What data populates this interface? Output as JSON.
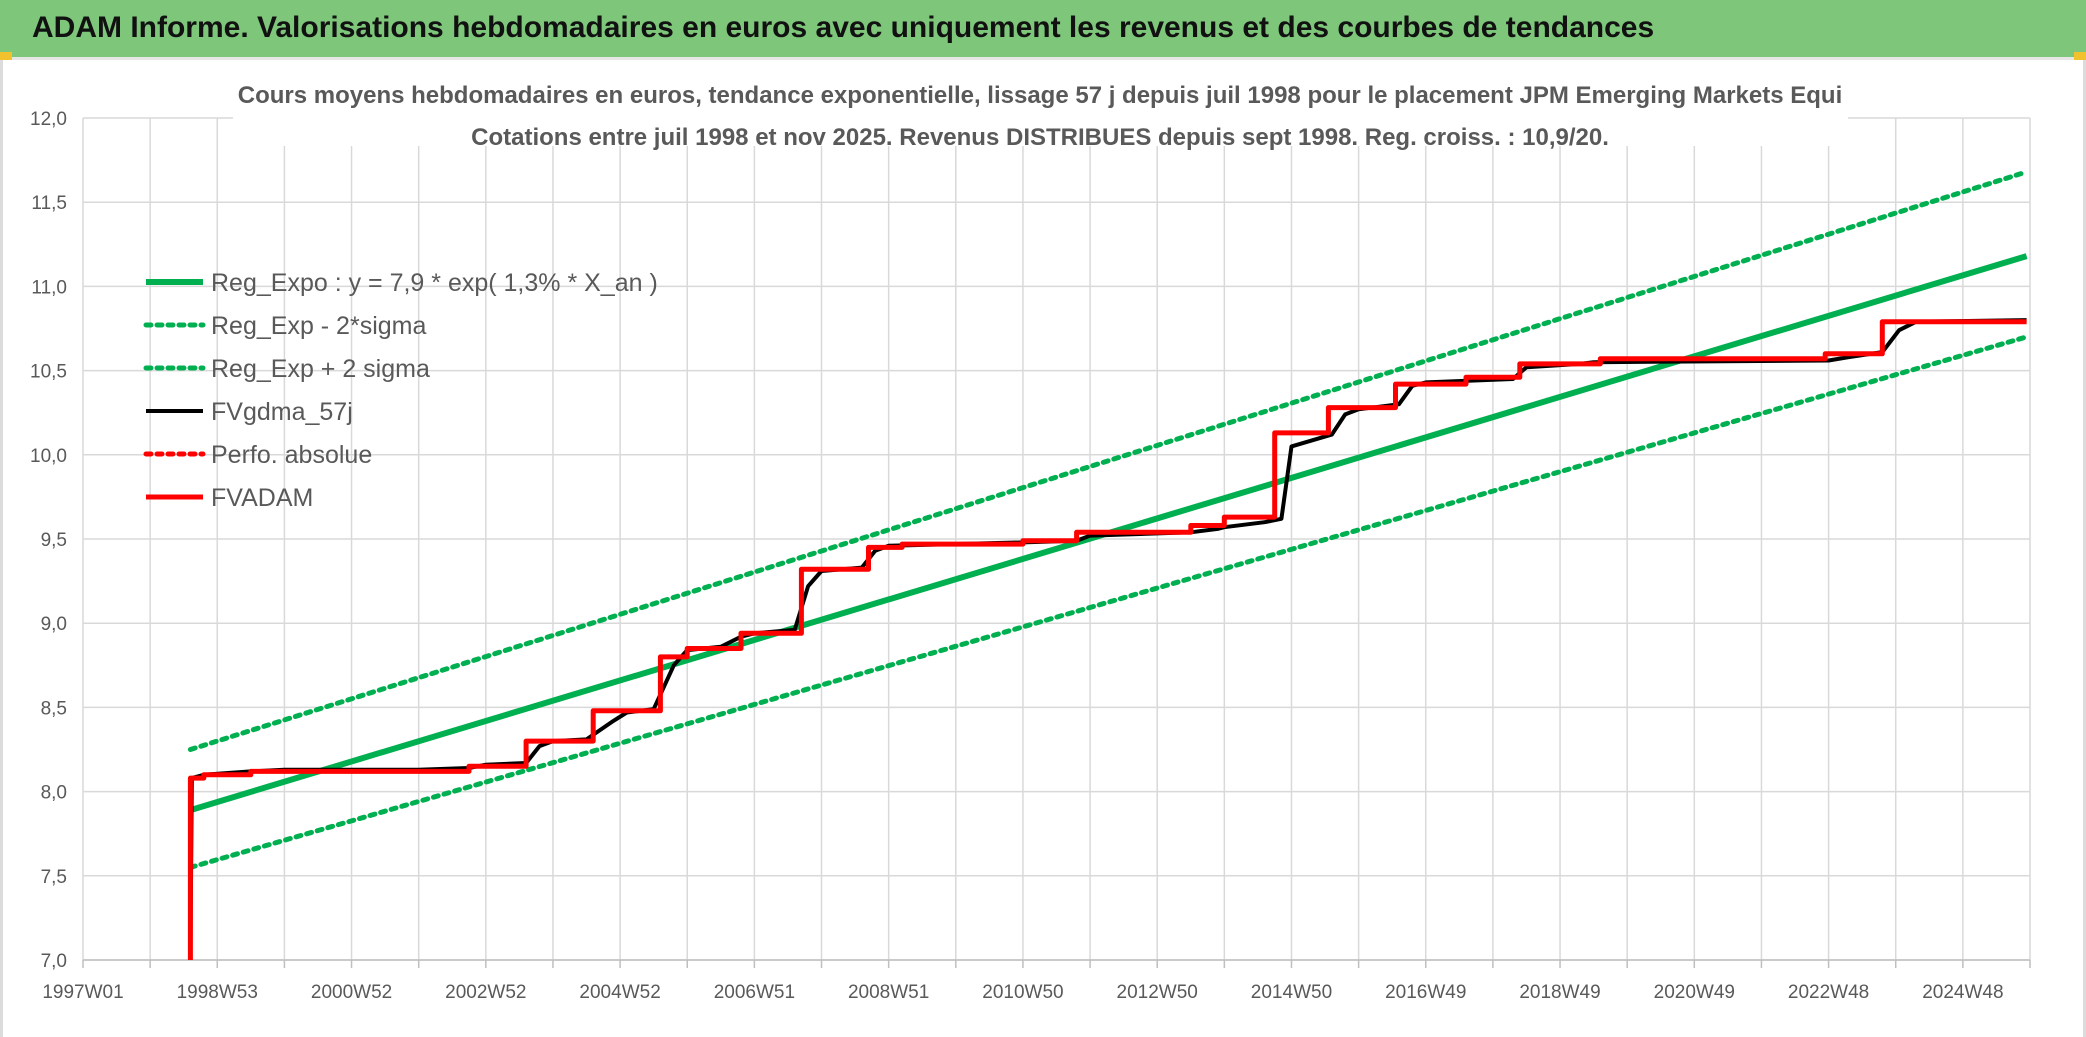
{
  "header": {
    "title": "ADAM Informe. Valorisations hebdomadaires en euros avec uniquement les revenus et des courbes de tendances"
  },
  "colors": {
    "banner": "#7dc67a",
    "reg_green": "#00b050",
    "fv_black": "#000000",
    "adam_red": "#ff0000",
    "grid": "#d9d9d9",
    "accent_corner": "#f2c12e"
  },
  "chart_data": {
    "type": "line",
    "title": "Cours moyens hebdomadaires en euros, tendance exponentielle, lissage 57 j depuis juil 1998 pour le placement JPM Emerging Markets Equi",
    "subtitle": "Cotations entre juil 1998 et nov 2025. Revenus DISTRIBUES depuis sept 1998. Reg. croiss. : 10,9/20.",
    "xlabel": "",
    "ylabel": "",
    "x_tick_labels": [
      "1997W01",
      "1998W53",
      "2000W52",
      "2002W52",
      "2004W52",
      "2006W51",
      "2008W51",
      "2010W50",
      "2012W50",
      "2014W50",
      "2016W49",
      "2018W49",
      "2020W49",
      "2022W48",
      "2024W48"
    ],
    "xlim": [
      1997.0,
      2026.0
    ],
    "ylim": [
      7.0,
      12.0
    ],
    "y_ticks": [
      7.0,
      7.5,
      8.0,
      8.5,
      9.0,
      9.5,
      10.0,
      10.5,
      11.0,
      11.5,
      12.0
    ],
    "y_tick_labels": [
      "7,0",
      "7,5",
      "8,0",
      "8,5",
      "9,0",
      "9,5",
      "10,0",
      "10,5",
      "11,0",
      "11,5",
      "12,0"
    ],
    "grid": true,
    "legend_position": "top-left",
    "series": [
      {
        "name": "Reg_Expo : y = 7,9 * exp( 1,3% *  X_an )",
        "style": "solid-thick",
        "color": "#00b050",
        "x": [
          1998.6,
          2025.95
        ],
        "y": [
          7.89,
          11.18
        ]
      },
      {
        "name": "Reg_Exp - 2*sigma",
        "style": "dotted",
        "color": "#00b050",
        "x": [
          1998.6,
          2025.95
        ],
        "y": [
          7.55,
          10.7
        ]
      },
      {
        "name": "Reg_Exp + 2 sigma",
        "style": "dotted",
        "color": "#00b050",
        "x": [
          1998.6,
          2025.95
        ],
        "y": [
          8.25,
          11.68
        ]
      },
      {
        "name": "FVgdma_57j",
        "style": "solid",
        "color": "#000000",
        "x": [
          1998.6,
          1998.62,
          1998.8,
          1999.5,
          2000.0,
          2002.0,
          2002.75,
          2003.0,
          2003.6,
          2003.8,
          2004.0,
          2004.5,
          2004.9,
          2005.1,
          2005.5,
          2005.8,
          2006.0,
          2006.5,
          2006.8,
          2007.0,
          2007.6,
          2007.8,
          2008.0,
          2008.6,
          2008.8,
          2009.0,
          2011.0,
          2011.8,
          2012.0,
          2013.5,
          2013.9,
          2014.0,
          2014.6,
          2014.85,
          2015.0,
          2015.6,
          2015.8,
          2016.0,
          2016.6,
          2016.8,
          2017.0,
          2018.3,
          2018.5,
          2019.3,
          2019.5,
          2023.0,
          2023.3,
          2023.8,
          2024.05,
          2024.3,
          2025.95
        ],
        "y": [
          7.0,
          8.08,
          8.1,
          8.12,
          8.13,
          8.13,
          8.14,
          8.16,
          8.17,
          8.27,
          8.3,
          8.31,
          8.42,
          8.47,
          8.49,
          8.75,
          8.84,
          8.86,
          8.92,
          8.94,
          8.96,
          9.22,
          9.31,
          9.33,
          9.43,
          9.46,
          9.48,
          9.49,
          9.52,
          9.54,
          9.56,
          9.57,
          9.6,
          9.62,
          10.05,
          10.12,
          10.24,
          10.27,
          10.3,
          10.41,
          10.43,
          10.45,
          10.52,
          10.54,
          10.55,
          10.56,
          10.58,
          10.61,
          10.74,
          10.79,
          10.8
        ]
      },
      {
        "name": "Perfo. absolue",
        "style": "dotted",
        "color": "#ff0000",
        "x": [],
        "y": []
      },
      {
        "name": "FVADAM",
        "style": "solid-thick",
        "color": "#ff0000",
        "x": [
          1998.6,
          1998.6,
          1998.8,
          1998.8,
          1999.5,
          1999.5,
          2002.75,
          2002.75,
          2003.6,
          2003.6,
          2004.6,
          2004.6,
          2005.6,
          2005.6,
          2006.0,
          2006.0,
          2006.8,
          2006.8,
          2007.7,
          2007.7,
          2008.7,
          2008.7,
          2009.2,
          2009.2,
          2011.0,
          2011.0,
          2011.8,
          2011.8,
          2013.5,
          2013.5,
          2014.0,
          2014.0,
          2014.75,
          2014.75,
          2015.55,
          2015.55,
          2016.55,
          2016.55,
          2017.6,
          2017.6,
          2018.4,
          2018.4,
          2019.6,
          2019.6,
          2022.95,
          2022.95,
          2023.8,
          2023.8,
          2025.95
        ],
        "y": [
          7.0,
          8.08,
          8.08,
          8.1,
          8.1,
          8.12,
          8.12,
          8.15,
          8.15,
          8.3,
          8.3,
          8.48,
          8.48,
          8.8,
          8.8,
          8.85,
          8.85,
          8.94,
          8.94,
          9.32,
          9.32,
          9.45,
          9.45,
          9.47,
          9.47,
          9.49,
          9.49,
          9.54,
          9.54,
          9.58,
          9.58,
          9.63,
          9.63,
          10.13,
          10.13,
          10.28,
          10.28,
          10.42,
          10.42,
          10.46,
          10.46,
          10.54,
          10.54,
          10.57,
          10.57,
          10.6,
          10.6,
          10.79,
          10.79
        ]
      }
    ]
  }
}
